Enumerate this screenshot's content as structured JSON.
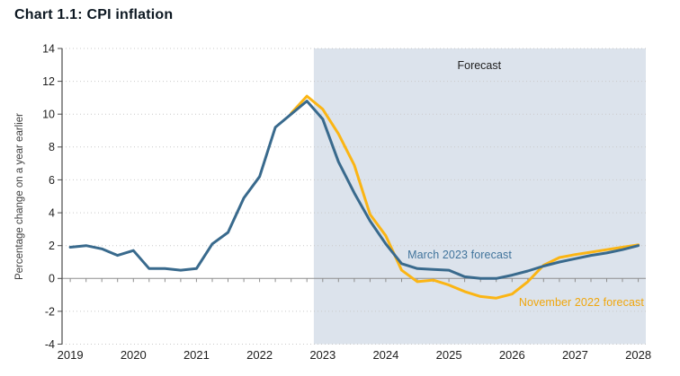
{
  "chart_data": {
    "type": "line",
    "title": "Chart 1.1: CPI inflation",
    "ylabel": "Percentage change on a year earlier",
    "ylim": [
      -4,
      14
    ],
    "xlim": [
      2018.87,
      2028.12
    ],
    "y_ticks": [
      -4,
      -2,
      0,
      2,
      4,
      6,
      8,
      10,
      12,
      14
    ],
    "x_tick_years": [
      2019,
      2020,
      2021,
      2022,
      2023,
      2024,
      2025,
      2026,
      2027,
      2028
    ],
    "grid": "dotted-horizontal",
    "legend_position": "inline-annotations",
    "forecast_band": {
      "label": "Forecast",
      "x_start": 2022.86,
      "x_end": 2028.12,
      "color": "#dce3ec"
    },
    "series": [
      {
        "name": "March 2023 forecast",
        "color": "#396a8d",
        "x": [
          2019.0,
          2019.25,
          2019.5,
          2019.75,
          2020.0,
          2020.25,
          2020.5,
          2020.75,
          2021.0,
          2021.25,
          2021.5,
          2021.75,
          2022.0,
          2022.25,
          2022.5,
          2022.75,
          2023.0,
          2023.25,
          2023.5,
          2023.75,
          2024.0,
          2024.25,
          2024.5,
          2024.75,
          2025.0,
          2025.25,
          2025.5,
          2025.75,
          2026.0,
          2026.25,
          2026.5,
          2026.75,
          2027.0,
          2027.25,
          2027.5,
          2027.75,
          2028.0
        ],
        "values": [
          1.9,
          2.0,
          1.8,
          1.4,
          1.7,
          0.6,
          0.6,
          0.5,
          0.6,
          2.1,
          2.8,
          4.9,
          6.2,
          9.2,
          10.0,
          10.8,
          9.7,
          7.1,
          5.2,
          3.5,
          2.1,
          0.9,
          0.6,
          0.55,
          0.5,
          0.1,
          0.0,
          0.0,
          0.2,
          0.45,
          0.75,
          1.0,
          1.2,
          1.4,
          1.55,
          1.75,
          2.0
        ]
      },
      {
        "name": "November 2022 forecast",
        "color": "#fbb514",
        "x": [
          2022.5,
          2022.75,
          2023.0,
          2023.25,
          2023.5,
          2023.75,
          2024.0,
          2024.25,
          2024.5,
          2024.75,
          2025.0,
          2025.25,
          2025.5,
          2025.75,
          2026.0,
          2026.25,
          2026.5,
          2026.75,
          2027.0,
          2027.25,
          2027.5,
          2027.75,
          2028.0
        ],
        "values": [
          10.05,
          11.1,
          10.3,
          8.8,
          6.9,
          3.9,
          2.6,
          0.5,
          -0.2,
          -0.1,
          -0.4,
          -0.8,
          -1.1,
          -1.2,
          -0.95,
          -0.2,
          0.8,
          1.27,
          1.45,
          1.6,
          1.75,
          1.9,
          2.05
        ]
      }
    ],
    "annotations": [
      {
        "text": "Forecast",
        "x": 2025.48,
        "y": 12.95,
        "color": "#1f1f1f"
      },
      {
        "text": "March 2023 forecast",
        "x": 2025.17,
        "y": 1.42,
        "color": "#41749c"
      },
      {
        "text": "November 2022 forecast",
        "x": 2027.1,
        "y": -1.43,
        "color": "#f0a60c"
      }
    ]
  }
}
